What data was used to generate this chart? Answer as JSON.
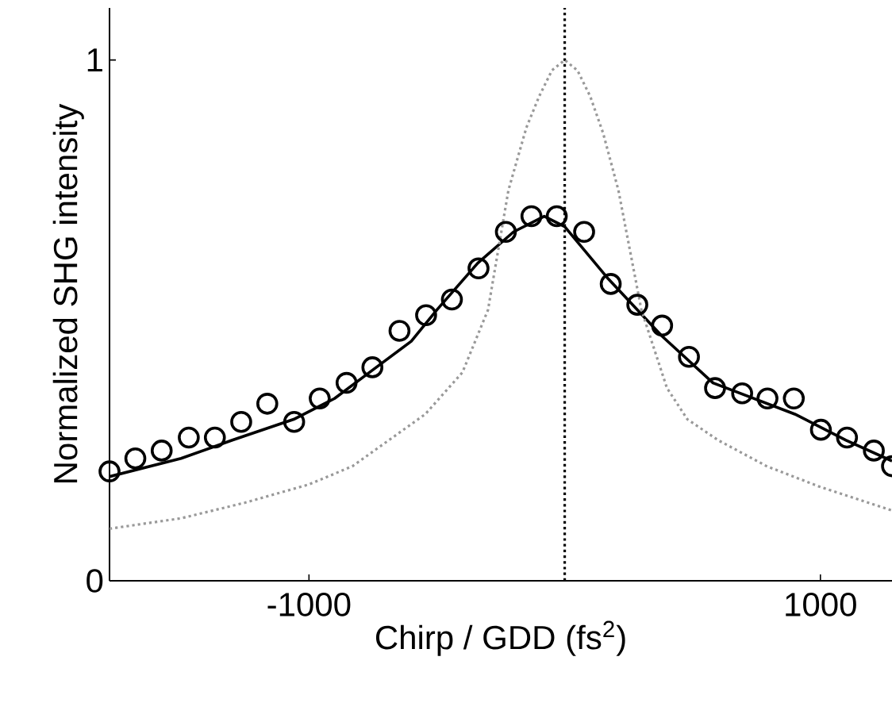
{
  "chart_data": {
    "type": "line",
    "xlabel": "Chirp / GDD (fs$^{2}$)",
    "ylabel": "Normalized SHG intensity",
    "xlim": [
      -1780,
      1280
    ],
    "ylim": [
      0,
      1.1
    ],
    "xticks": [
      -1000,
      1000
    ],
    "yticks": [
      0,
      1
    ],
    "grid": false,
    "ref_lines": [
      {
        "axis": "x",
        "value": 0,
        "color": "#000000",
        "line_style": "dotted"
      }
    ],
    "series": [
      {
        "type": "scatter",
        "marker": "circle",
        "color": "#000000",
        "x": [
          -1780,
          -1679,
          -1576,
          -1470,
          -1368,
          -1265,
          -1163,
          -1058,
          -958,
          -853,
          -752,
          -646,
          -542,
          -441,
          -337,
          -230,
          -130,
          -31,
          76,
          180,
          284,
          381,
          486,
          588,
          694,
          793,
          896,
          1002,
          1104,
          1209,
          1280
        ],
        "values": [
          0.21,
          0.235,
          0.25,
          0.275,
          0.275,
          0.305,
          0.34,
          0.305,
          0.35,
          0.38,
          0.41,
          0.48,
          0.51,
          0.54,
          0.6,
          0.67,
          0.7,
          0.7,
          0.67,
          0.57,
          0.53,
          0.49,
          0.43,
          0.37,
          0.36,
          0.35,
          0.35,
          0.29,
          0.275,
          0.25,
          0.22
        ]
      },
      {
        "type": "line",
        "line_style": "solid",
        "marker": "none",
        "color": "#000000",
        "x": [
          -1780,
          -1500,
          -1300,
          -1060,
          -900,
          -750,
          -600,
          -500,
          -340,
          -200,
          -80,
          0,
          170,
          380,
          580,
          900,
          1100,
          1280
        ],
        "values": [
          0.2,
          0.235,
          0.27,
          0.31,
          0.35,
          0.405,
          0.46,
          0.52,
          0.61,
          0.67,
          0.7,
          0.68,
          0.58,
          0.47,
          0.38,
          0.32,
          0.27,
          0.23
        ]
      },
      {
        "type": "line",
        "line_style": "dotted",
        "marker": "none",
        "color": "#999999",
        "x": [
          -1780,
          -1500,
          -1250,
          -1000,
          -830,
          -545,
          -400,
          -300,
          -220,
          -150,
          -100,
          -50,
          0,
          50,
          100,
          150,
          210,
          300,
          400,
          480,
          600,
          790,
          1000,
          1280
        ],
        "values": [
          0.1,
          0.12,
          0.15,
          0.185,
          0.22,
          0.32,
          0.4,
          0.52,
          0.75,
          0.87,
          0.93,
          0.98,
          1.0,
          0.98,
          0.93,
          0.86,
          0.75,
          0.52,
          0.37,
          0.31,
          0.27,
          0.22,
          0.18,
          0.135
        ]
      }
    ]
  }
}
